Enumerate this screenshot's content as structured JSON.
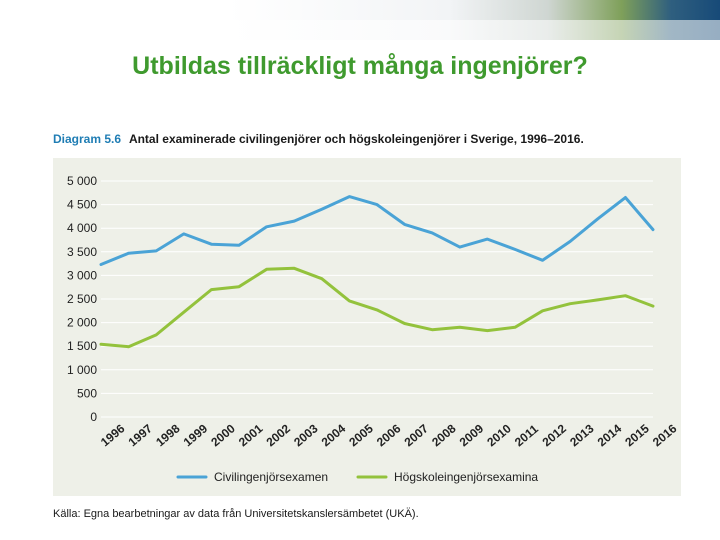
{
  "slide": {
    "title": "Utbildas tillräckligt många ingenjörer?"
  },
  "figure": {
    "caption_prefix": "Diagram 5.6",
    "caption_text": "Antal examinerade civilingenjörer och högskoleingenjörer i Sverige, 1996–2016.",
    "source": "Källa: Egna bearbetningar av data från Universitetskanslersämbetet (UKÄ)."
  },
  "colors": {
    "title_green": "#3f9a2e",
    "caption_blue": "#1f7db4",
    "panel_bg": "#eef0e8",
    "series_blue": "#4aa3d6",
    "series_green": "#93c23c"
  },
  "chart_data": {
    "type": "line",
    "title": "Antal examinerade civilingenjörer och högskoleingenjörer i Sverige, 1996–2016.",
    "xlabel": "",
    "ylabel": "",
    "ylim": [
      0,
      5000
    ],
    "yticks": [
      0,
      500,
      1000,
      1500,
      2000,
      2500,
      3000,
      3500,
      4000,
      4500,
      5000
    ],
    "ytick_labels": [
      "0",
      "500",
      "1 000",
      "1 500",
      "2 000",
      "2 500",
      "3 000",
      "3 500",
      "4 000",
      "4 500",
      "5 000"
    ],
    "grid": true,
    "legend_position": "bottom-center",
    "categories": [
      "1996",
      "1997",
      "1998",
      "1999",
      "2000",
      "2001",
      "2002",
      "2003",
      "2004",
      "2005",
      "2006",
      "2007",
      "2008",
      "2009",
      "2010",
      "2011",
      "2012",
      "2013",
      "2014",
      "2015",
      "2016"
    ],
    "series": [
      {
        "name": "Civilingenjörsexamen",
        "color": "#4aa3d6",
        "values": [
          3230,
          3470,
          3520,
          3880,
          3660,
          3640,
          4030,
          4150,
          4400,
          4670,
          4500,
          4080,
          3900,
          3600,
          3770,
          3550,
          3320,
          3720,
          4200,
          4650,
          3970
        ]
      },
      {
        "name": "Högskoleingenjörsexamina",
        "color": "#93c23c",
        "values": [
          1540,
          1490,
          1740,
          2220,
          2700,
          2760,
          3130,
          3150,
          2930,
          2460,
          2270,
          1980,
          1850,
          1900,
          1830,
          1900,
          2250,
          2400,
          2480,
          2570,
          2350
        ]
      }
    ]
  }
}
